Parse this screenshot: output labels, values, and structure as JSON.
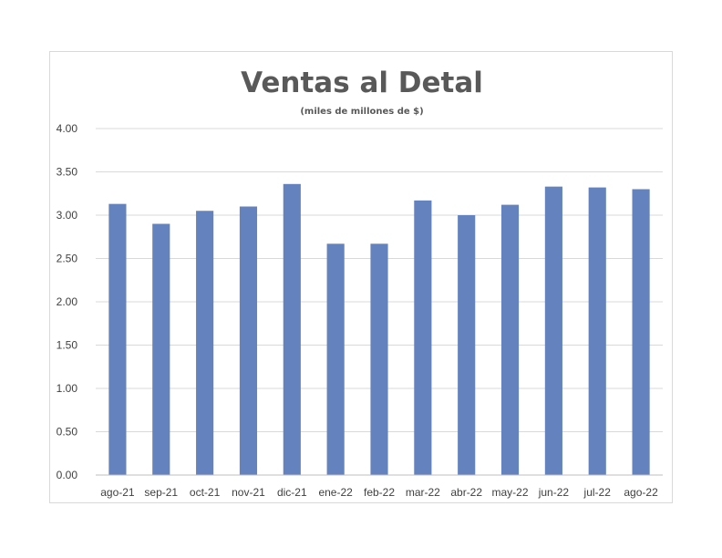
{
  "chart_data": {
    "type": "bar",
    "title": "Ventas al Detal",
    "subtitle": "(miles de millones de $)",
    "xlabel": "",
    "ylabel": "",
    "categories": [
      "ago-21",
      "sep-21",
      "oct-21",
      "nov-21",
      "dic-21",
      "ene-22",
      "feb-22",
      "mar-22",
      "abr-22",
      "may-22",
      "jun-22",
      "jul-22",
      "ago-22"
    ],
    "values": [
      3.13,
      2.9,
      3.05,
      3.1,
      3.36,
      2.67,
      2.67,
      3.17,
      3.0,
      3.12,
      3.33,
      3.32,
      3.3
    ],
    "ylim": [
      0,
      4
    ],
    "yticks": [
      "0.00",
      "0.50",
      "1.00",
      "1.50",
      "2.00",
      "2.50",
      "3.00",
      "3.50",
      "4.00"
    ],
    "grid": true,
    "legend": "none",
    "bar_color": "#6482bd"
  }
}
